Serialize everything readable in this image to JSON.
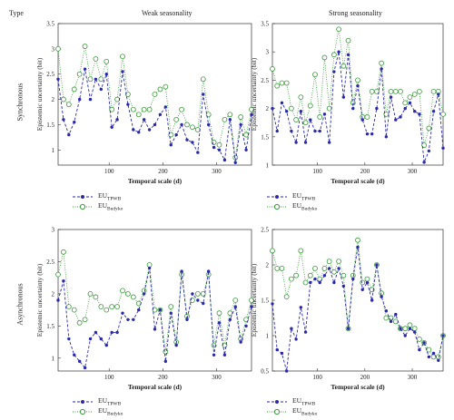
{
  "header": {
    "type_label": "Type",
    "col_titles": [
      "Weak seasonality",
      "Strong seasonality"
    ],
    "row_labels": [
      "Synchronous",
      "Asynchronous"
    ]
  },
  "legend": {
    "items": [
      {
        "base": "EU",
        "sub": "TPWB"
      },
      {
        "base": "EU",
        "sub": "Budyko"
      }
    ]
  },
  "colors": {
    "tpwb": "#2a2aa8",
    "budyko": "#3a9a3a",
    "budyko_fill": "#ffffff"
  },
  "chart_data": [
    {
      "type": "line",
      "panel": "synchronous-weak",
      "xlabel": "Temporal scale (d)",
      "ylabel": "Epistemic uncertainty (bit)",
      "xlim": [
        5,
        365
      ],
      "ylim": [
        0.7,
        3.5
      ],
      "xticks": [
        100,
        200,
        300
      ],
      "yticks": [
        1,
        1.5,
        2,
        2.5,
        3,
        3.5
      ],
      "x": [
        5,
        15,
        25,
        35,
        45,
        55,
        65,
        75,
        85,
        95,
        105,
        115,
        125,
        135,
        145,
        155,
        165,
        175,
        185,
        195,
        205,
        215,
        225,
        235,
        245,
        255,
        265,
        275,
        285,
        295,
        305,
        315,
        325,
        335,
        345,
        355,
        365
      ],
      "series": [
        {
          "name": "EU TPWB",
          "values": [
            2.4,
            1.6,
            1.3,
            1.55,
            2.0,
            2.6,
            2.0,
            2.4,
            2.2,
            2.5,
            1.45,
            1.6,
            2.55,
            1.9,
            1.4,
            1.35,
            1.6,
            1.4,
            1.5,
            1.7,
            1.85,
            1.1,
            1.3,
            1.5,
            1.2,
            1.15,
            0.95,
            2.1,
            1.5,
            1.05,
            1.0,
            0.8,
            1.6,
            0.75,
            1.5,
            1.0,
            1.7
          ]
        },
        {
          "name": "EU Budyko",
          "values": [
            3.0,
            2.0,
            1.9,
            2.2,
            2.5,
            3.05,
            2.4,
            2.8,
            2.4,
            2.75,
            1.8,
            2.0,
            2.85,
            2.1,
            1.8,
            1.7,
            1.8,
            1.8,
            2.1,
            2.2,
            2.25,
            1.3,
            1.6,
            1.8,
            1.5,
            1.45,
            1.4,
            2.4,
            1.7,
            1.15,
            1.1,
            1.6,
            1.7,
            0.85,
            1.65,
            1.3,
            1.8
          ]
        }
      ]
    },
    {
      "type": "line",
      "panel": "synchronous-strong",
      "xlabel": "Temporal scale (d)",
      "ylabel": "Epistemic uncertainty (bit)",
      "xlim": [
        5,
        365
      ],
      "ylim": [
        1.0,
        3.5
      ],
      "xticks": [
        100,
        200,
        300
      ],
      "yticks": [
        1,
        1.5,
        2,
        2.5,
        3,
        3.5
      ],
      "x": [
        5,
        15,
        25,
        35,
        45,
        55,
        65,
        75,
        85,
        95,
        105,
        115,
        125,
        135,
        145,
        155,
        165,
        175,
        185,
        195,
        205,
        215,
        225,
        235,
        245,
        255,
        265,
        275,
        285,
        295,
        305,
        315,
        325,
        335,
        345,
        355,
        365
      ],
      "series": [
        {
          "name": "EU TPWB",
          "values": [
            2.0,
            1.6,
            2.1,
            1.95,
            1.6,
            1.4,
            1.95,
            1.4,
            1.8,
            1.6,
            1.6,
            1.9,
            1.4,
            2.65,
            3.0,
            2.2,
            2.95,
            2.0,
            2.4,
            1.8,
            1.55,
            1.55,
            2.0,
            2.7,
            1.5,
            2.2,
            1.8,
            1.85,
            2.0,
            2.1,
            1.95,
            1.9,
            1.05,
            1.25,
            1.95,
            2.25,
            1.3
          ]
        },
        {
          "name": "EU Budyko",
          "values": [
            2.7,
            2.4,
            2.45,
            2.45,
            2.0,
            1.8,
            2.2,
            1.75,
            2.05,
            2.6,
            1.85,
            2.9,
            2.0,
            2.95,
            3.4,
            2.75,
            3.2,
            2.1,
            2.5,
            1.85,
            1.85,
            2.3,
            2.3,
            2.8,
            1.9,
            2.3,
            2.3,
            2.3,
            2.1,
            2.2,
            2.25,
            2.3,
            1.35,
            1.65,
            2.3,
            2.3,
            1.9
          ]
        }
      ]
    },
    {
      "type": "line",
      "panel": "asynchronous-weak",
      "xlabel": "Temporal scale (d)",
      "ylabel": "Epistemic uncertainty (bit)",
      "xlim": [
        5,
        365
      ],
      "ylim": [
        0.8,
        3.0
      ],
      "xticks": [
        100,
        200,
        300
      ],
      "yticks": [
        1,
        1.5,
        2,
        2.5,
        3
      ],
      "x": [
        5,
        15,
        25,
        35,
        45,
        55,
        65,
        75,
        85,
        95,
        105,
        115,
        125,
        135,
        145,
        155,
        165,
        175,
        185,
        195,
        205,
        215,
        225,
        235,
        245,
        255,
        265,
        275,
        285,
        295,
        305,
        315,
        325,
        335,
        345,
        355,
        365
      ],
      "series": [
        {
          "name": "EU TPWB",
          "values": [
            1.9,
            2.2,
            1.3,
            1.05,
            0.95,
            0.85,
            1.3,
            1.4,
            1.3,
            1.2,
            1.4,
            1.4,
            1.7,
            1.6,
            1.6,
            1.75,
            2.0,
            2.4,
            1.45,
            1.75,
            0.95,
            1.7,
            1.2,
            2.35,
            1.6,
            2.0,
            1.9,
            1.85,
            2.35,
            1.05,
            1.55,
            1.05,
            1.6,
            1.8,
            1.25,
            1.5,
            1.8
          ]
        },
        {
          "name": "EU Budyko",
          "values": [
            2.3,
            2.65,
            1.8,
            1.75,
            1.55,
            1.6,
            2.0,
            1.95,
            1.8,
            1.75,
            1.8,
            1.8,
            2.05,
            2.0,
            1.95,
            1.85,
            2.05,
            2.45,
            1.75,
            1.75,
            1.1,
            1.8,
            1.25,
            2.3,
            1.65,
            1.9,
            2.0,
            2.0,
            2.3,
            1.2,
            1.7,
            1.2,
            1.7,
            1.9,
            1.3,
            1.6,
            1.9
          ]
        }
      ]
    },
    {
      "type": "line",
      "panel": "asynchronous-strong",
      "xlabel": "Temporal scale (d)",
      "ylabel": "Epistemic uncertainty (bit)",
      "xlim": [
        5,
        365
      ],
      "ylim": [
        0.5,
        2.5
      ],
      "xticks": [
        100,
        200,
        300
      ],
      "yticks": [
        0.5,
        1,
        1.5,
        2,
        2.5
      ],
      "x": [
        5,
        15,
        25,
        35,
        45,
        55,
        65,
        75,
        85,
        95,
        105,
        115,
        125,
        135,
        145,
        155,
        165,
        175,
        185,
        195,
        205,
        215,
        225,
        235,
        245,
        255,
        265,
        275,
        285,
        295,
        305,
        315,
        325,
        335,
        345,
        355,
        365
      ],
      "series": [
        {
          "name": "EU TPWB",
          "values": [
            1.45,
            0.8,
            0.75,
            0.5,
            1.1,
            0.95,
            1.4,
            1.05,
            1.75,
            1.8,
            1.75,
            1.85,
            1.95,
            1.75,
            1.95,
            1.7,
            1.1,
            1.8,
            2.25,
            1.65,
            1.75,
            1.5,
            2.0,
            1.55,
            1.35,
            1.2,
            1.3,
            1.1,
            1.0,
            1.1,
            1.05,
            0.8,
            0.9,
            0.7,
            0.75,
            0.65,
            1.0
          ]
        },
        {
          "name": "EU Budyko",
          "values": [
            2.2,
            1.95,
            1.95,
            1.55,
            1.8,
            1.85,
            2.2,
            1.75,
            1.85,
            1.95,
            1.8,
            1.95,
            2.05,
            1.9,
            2.05,
            1.85,
            1.1,
            1.85,
            2.35,
            1.75,
            1.8,
            1.65,
            2.0,
            1.6,
            1.25,
            1.25,
            1.2,
            1.1,
            1.1,
            1.15,
            1.1,
            0.95,
            0.9,
            0.8,
            0.7,
            0.7,
            1.0
          ]
        }
      ]
    }
  ]
}
